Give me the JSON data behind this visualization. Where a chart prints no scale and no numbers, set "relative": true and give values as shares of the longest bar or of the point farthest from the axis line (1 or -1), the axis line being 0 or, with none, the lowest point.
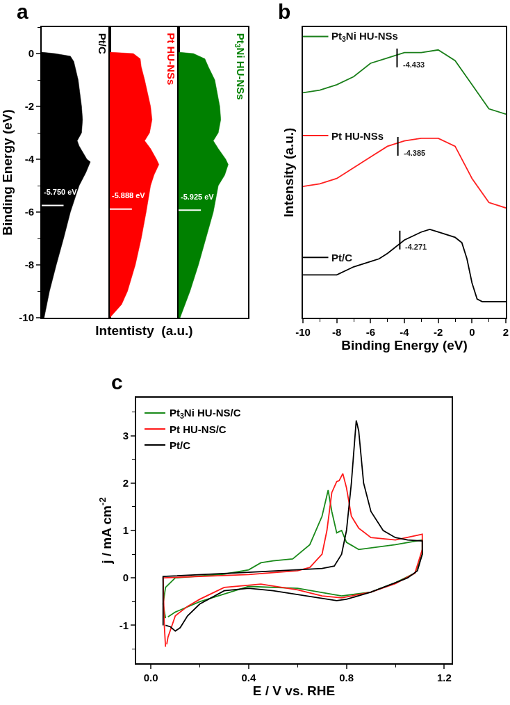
{
  "chart_data": [
    {
      "type": "area",
      "title": "a",
      "orientation": "horizontal",
      "relative": true,
      "ylabel": "Binding Energy (eV)",
      "ylim": [
        -10,
        1
      ],
      "yticks": [
        {
          "value": 1,
          "label": null
        },
        0,
        {
          "value": -1,
          "label": null
        },
        -2,
        {
          "value": -3,
          "label": null
        },
        -4,
        {
          "value": -5,
          "label": null
        },
        -6,
        {
          "value": -7,
          "label": null
        },
        -8,
        {
          "value": -9,
          "label": null
        },
        -10
      ],
      "tick_labels": "y",
      "legend": false,
      "x": [
        0.05,
        0,
        -0.1,
        -0.3,
        -1,
        -2,
        -2.5,
        -3,
        -3.3,
        -3.5,
        -4,
        -4.1,
        -4.5,
        -5,
        -6,
        -7,
        -8,
        -9,
        -10
      ],
      "series": [
        {
          "name": "Pt/C",
          "color": "#000000",
          "values": [
            0,
            0.27,
            0.59,
            0.66,
            0.75,
            0.82,
            0.84,
            0.82,
            0.73,
            0.77,
            0.93,
            1,
            0.91,
            0.77,
            0.59,
            0.45,
            0.3,
            0.16,
            0.05
          ]
        }
      ],
      "ref_lines": [
        {
          "axis": "y",
          "value": -5.75,
          "label": "-5.750 eV",
          "color": "#ffffff"
        }
      ]
    },
    {
      "type": "area",
      "orientation": "horizontal",
      "relative": true,
      "xlabel": "Intentisty  (a.u.)",
      "ylim": [
        -10,
        1
      ],
      "tick_labels": false,
      "legend": false,
      "x": [
        0.05,
        0,
        -0.2,
        -0.5,
        -1,
        -2,
        -2.5,
        -3,
        -3.3,
        -3.6,
        -4,
        -4.2,
        -4.6,
        -5,
        -6,
        -7,
        -8,
        -9,
        -9.5,
        -10
      ],
      "series": [
        {
          "name": "Pt HU-NSs",
          "color": "#ff0000",
          "values": [
            0,
            0.48,
            0.62,
            0.64,
            0.71,
            0.83,
            0.86,
            0.81,
            0.71,
            0.83,
            0.95,
            1,
            0.9,
            0.83,
            0.74,
            0.64,
            0.52,
            0.36,
            0.24,
            0
          ]
        }
      ],
      "ref_lines": [
        {
          "axis": "y",
          "value": -5.888,
          "label": "-5.888 eV",
          "color": "#ffffff"
        }
      ]
    },
    {
      "type": "area",
      "orientation": "horizontal",
      "relative": true,
      "ylim": [
        -10,
        1
      ],
      "tick_labels": false,
      "legend": false,
      "x": [
        0.05,
        0,
        -0.2,
        -0.5,
        -1,
        -2,
        -2.5,
        -3,
        -3.3,
        -3.6,
        -4,
        -4.2,
        -4.6,
        -5,
        -6,
        -7,
        -8,
        -9,
        -10
      ],
      "series": [
        {
          "name": "Pt$_{3}$Ni HU-NSs",
          "color": "#008000",
          "values": [
            0,
            0.3,
            0.53,
            0.6,
            0.73,
            0.83,
            0.85,
            0.8,
            0.7,
            0.8,
            0.95,
            1,
            0.93,
            0.8,
            0.7,
            0.55,
            0.4,
            0.23,
            0.03
          ]
        }
      ],
      "ref_lines": [
        {
          "axis": "y",
          "value": -5.925,
          "label": "-5.925 eV",
          "color": "#ffffff"
        }
      ]
    },
    {
      "type": "line",
      "title": "b",
      "relative": true,
      "xlabel": "Binding Energy (eV)",
      "ylabel": "Intensity (a.u.)",
      "xlim": [
        -10,
        2
      ],
      "xticks": [
        -10,
        {
          "value": -9,
          "label": null
        },
        -8,
        {
          "value": -7,
          "label": null
        },
        -6,
        {
          "value": -5,
          "label": null
        },
        -4,
        {
          "value": -3,
          "label": null
        },
        -2,
        {
          "value": -1,
          "label": null
        },
        0,
        {
          "value": 1,
          "label": null
        },
        2
      ],
      "tick_labels": "x",
      "legend": "left",
      "marker": "none",
      "series": [
        {
          "name": "Pt$_{3}$Ni HU-NSs",
          "color": "#1a7f1a",
          "x": [
            -10,
            -9,
            -8,
            -7,
            -6,
            -5,
            -4,
            -3,
            -2,
            -1,
            0,
            1,
            2
          ],
          "values": [
            0.84,
            0.85,
            0.87,
            0.9,
            0.95,
            0.97,
            0.99,
            0.99,
            1,
            0.96,
            0.87,
            0.78,
            0.76
          ]
        },
        {
          "name": "Pt HU-NSs",
          "color": "#ff2020",
          "x": [
            -10,
            -9,
            -8,
            -7,
            -6,
            -5,
            -4,
            -3,
            -2,
            -1,
            0,
            1,
            2
          ],
          "values": [
            0.49,
            0.5,
            0.52,
            0.56,
            0.6,
            0.64,
            0.66,
            0.67,
            0.67,
            0.64,
            0.52,
            0.43,
            0.41
          ]
        },
        {
          "name": "Pt/C",
          "color": "#000000",
          "x": [
            -10,
            -9,
            -8,
            -7,
            -6,
            -5.5,
            -5,
            -4,
            -3,
            -2.5,
            -2,
            -1,
            -0.6,
            -0.3,
            0,
            0.3,
            0.6,
            1,
            2
          ],
          "values": [
            0.16,
            0.16,
            0.16,
            0.19,
            0.21,
            0.22,
            0.24,
            0.29,
            0.32,
            0.33,
            0.32,
            0.3,
            0.28,
            0.22,
            0.13,
            0.07,
            0.06,
            0.06,
            0.06
          ]
        }
      ],
      "annotations": [
        {
          "text": "-4.433",
          "x": -4.433,
          "y": 0.97
        },
        {
          "text": "-4.385",
          "x": -4.385,
          "y": 0.64
        },
        {
          "text": "-4.271",
          "x": -4.271,
          "y": 0.29
        }
      ]
    },
    {
      "type": "line",
      "title": "c",
      "xlabel": "E / V vs. RHE",
      "ylabel": "j / mA cm$^{-2}$",
      "xlim": [
        -0.06,
        1.23
      ],
      "xticks": [
        {
          "value": 0,
          "label": "0.0"
        },
        {
          "value": 0.2,
          "label": null
        },
        0.4,
        {
          "value": 0.6,
          "label": null
        },
        0.8,
        {
          "value": 1.0,
          "label": null
        },
        1.2
      ],
      "ylim": [
        -1.8,
        3.8
      ],
      "yticks": [
        {
          "value": -1.5,
          "label": null
        },
        -1,
        {
          "value": -0.5,
          "label": null
        },
        0,
        {
          "value": 0.5,
          "label": null
        },
        1,
        {
          "value": 1.5,
          "label": null
        },
        2,
        {
          "value": 2.5,
          "label": null
        },
        3,
        {
          "value": 3.5,
          "label": null
        }
      ],
      "legend": "top left",
      "marker": "none",
      "series": [
        {
          "name": "Pt$_{3}$Ni HU-NS/C",
          "color": "#1a8a1a",
          "x": [
            0.06,
            0.05,
            0.06,
            0.1,
            0.3,
            0.4,
            0.45,
            0.5,
            0.58,
            0.65,
            0.7,
            0.725,
            0.74,
            0.76,
            0.78,
            0.8,
            0.85,
            1.0,
            1.11,
            1.11,
            1.08,
            1.0,
            0.9,
            0.78,
            0.6,
            0.4,
            0.2,
            0.1,
            0.07
          ],
          "values": [
            -0.85,
            -0.55,
            -0.2,
            0.0,
            0.08,
            0.17,
            0.32,
            0.36,
            0.4,
            0.7,
            1.3,
            1.85,
            1.4,
            0.95,
            1.0,
            0.75,
            0.6,
            0.7,
            0.8,
            0.5,
            0.1,
            -0.1,
            -0.3,
            -0.38,
            -0.22,
            -0.18,
            -0.5,
            -0.72,
            -0.82
          ]
        },
        {
          "name": "Pt HU-NS/C",
          "color": "#ff1a1a",
          "x": [
            0.06,
            0.055,
            0.05,
            0.2,
            0.4,
            0.6,
            0.65,
            0.7,
            0.72,
            0.74,
            0.76,
            0.77,
            0.785,
            0.8,
            0.82,
            0.85,
            0.9,
            1.0,
            1.11,
            1.11,
            1.08,
            1.0,
            0.9,
            0.78,
            0.7,
            0.6,
            0.45,
            0.3,
            0.2,
            0.15,
            0.1,
            0.07,
            0.065
          ],
          "values": [
            -1.45,
            -1.0,
            0.0,
            0.03,
            0.07,
            0.15,
            0.22,
            0.5,
            1.0,
            1.8,
            2.03,
            2.05,
            2.2,
            1.9,
            1.3,
            1.05,
            0.85,
            0.8,
            0.92,
            0.6,
            0.1,
            -0.12,
            -0.3,
            -0.42,
            -0.38,
            -0.25,
            -0.13,
            -0.2,
            -0.45,
            -0.6,
            -0.8,
            -1.25,
            -1.4
          ]
        },
        {
          "name": "Pt/C",
          "color": "#000000",
          "x": [
            0.05,
            0.05,
            0.4,
            0.7,
            0.75,
            0.78,
            0.8,
            0.82,
            0.835,
            0.84,
            0.85,
            0.87,
            0.9,
            0.95,
            1.0,
            1.05,
            1.11,
            1.11,
            1.09,
            1.05,
            1.0,
            0.9,
            0.8,
            0.76,
            0.7,
            0.6,
            0.5,
            0.4,
            0.3,
            0.2,
            0.15,
            0.12,
            0.1,
            0.08,
            0.06
          ],
          "values": [
            -1.0,
            0.03,
            0.12,
            0.2,
            0.25,
            0.5,
            1.0,
            2.0,
            3.0,
            3.32,
            3.1,
            2.0,
            1.4,
            1.0,
            0.85,
            0.8,
            0.78,
            0.5,
            0.15,
            0.0,
            -0.1,
            -0.3,
            -0.45,
            -0.48,
            -0.43,
            -0.35,
            -0.27,
            -0.22,
            -0.27,
            -0.55,
            -0.8,
            -1.05,
            -1.12,
            -1.03,
            -1.0
          ]
        }
      ]
    }
  ]
}
